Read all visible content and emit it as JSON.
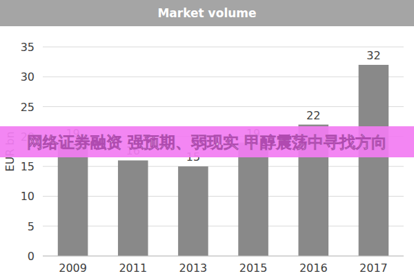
{
  "chart_data": {
    "type": "bar",
    "title": "Market volume",
    "y_label": "EUR bn",
    "annotations": [
      "网络证券融资 强预期、弱现实 甲醇震荡中寻找方向"
    ],
    "categories": [
      "2009",
      "2011",
      "2013",
      "2015",
      "2016",
      "2017"
    ],
    "values": [
      19,
      16,
      15,
      19,
      22,
      32
    ],
    "color": "#898989",
    "ylim": [
      0,
      35
    ],
    "yticks": [
      0,
      5,
      10,
      15,
      20,
      25,
      30,
      35
    ],
    "grid": true,
    "data_labels": true
  }
}
